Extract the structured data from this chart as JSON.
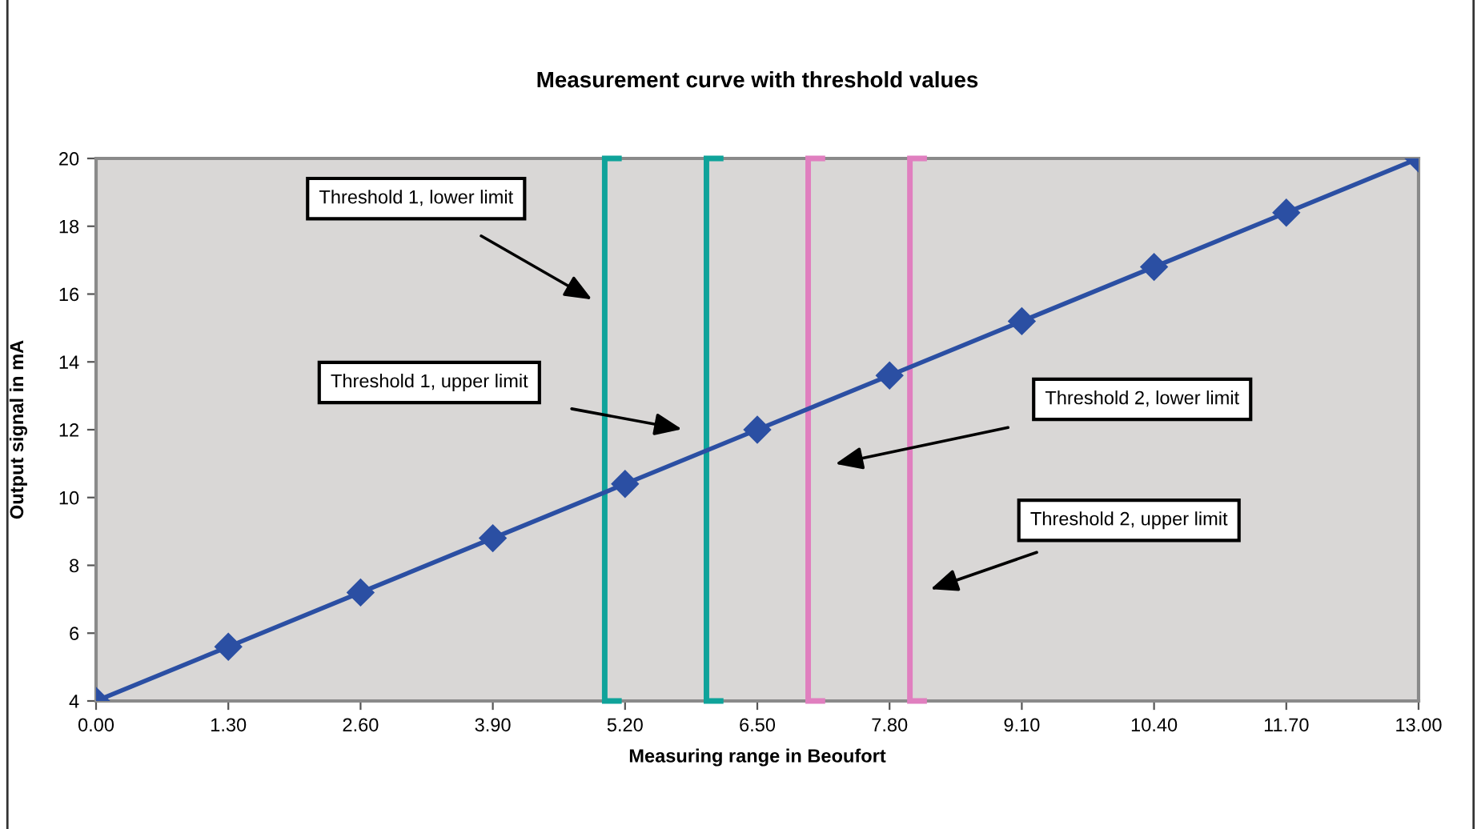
{
  "chart_data": {
    "type": "line",
    "title": "Measurement curve with threshold values",
    "xlabel": "Measuring range in Beoufort",
    "ylabel": "Output signal in mA",
    "x": [
      0,
      1.3,
      2.6,
      3.9,
      5.2,
      6.5,
      7.8,
      9.1,
      10.4,
      11.7,
      13
    ],
    "series": [
      {
        "color": "#2b4fa3",
        "values": [
          4,
          5.6,
          7.2,
          8.8,
          10.4,
          12,
          13.6,
          15.2,
          16.8,
          18.4,
          20
        ]
      }
    ],
    "marker": "diamond",
    "line_style": "solid",
    "grid": false,
    "legend": false,
    "xlim": [
      0,
      13
    ],
    "xticks": [
      {
        "value": 0,
        "label": "0.00"
      },
      {
        "value": 1.3,
        "label": "1.30"
      },
      {
        "value": 2.6,
        "label": "2.60"
      },
      {
        "value": 3.9,
        "label": "3.90"
      },
      {
        "value": 5.2,
        "label": "5.20"
      },
      {
        "value": 6.5,
        "label": "6.50"
      },
      {
        "value": 7.8,
        "label": "7.80"
      },
      {
        "value": 9.1,
        "label": "9.10"
      },
      {
        "value": 10.4,
        "label": "10.40"
      },
      {
        "value": 11.7,
        "label": "11.70"
      },
      {
        "value": 13,
        "label": "13.00"
      }
    ],
    "ylim": [
      4,
      20
    ],
    "yticks": [
      4,
      6,
      8,
      10,
      12,
      14,
      16,
      18,
      20
    ],
    "ref_lines": [
      {
        "axis": "x",
        "value": 5,
        "color": "#0fa39a"
      },
      {
        "axis": "x",
        "value": 6,
        "color": "#0fa39a"
      },
      {
        "axis": "x",
        "value": 7,
        "color": "#e07fbf"
      },
      {
        "axis": "x",
        "value": 8,
        "color": "#e07fbf"
      }
    ],
    "annotations": [
      "Threshold 1, lower limit",
      "Threshold 1, upper limit",
      "Threshold 2, lower limit",
      "Threshold 2, upper limit"
    ]
  }
}
